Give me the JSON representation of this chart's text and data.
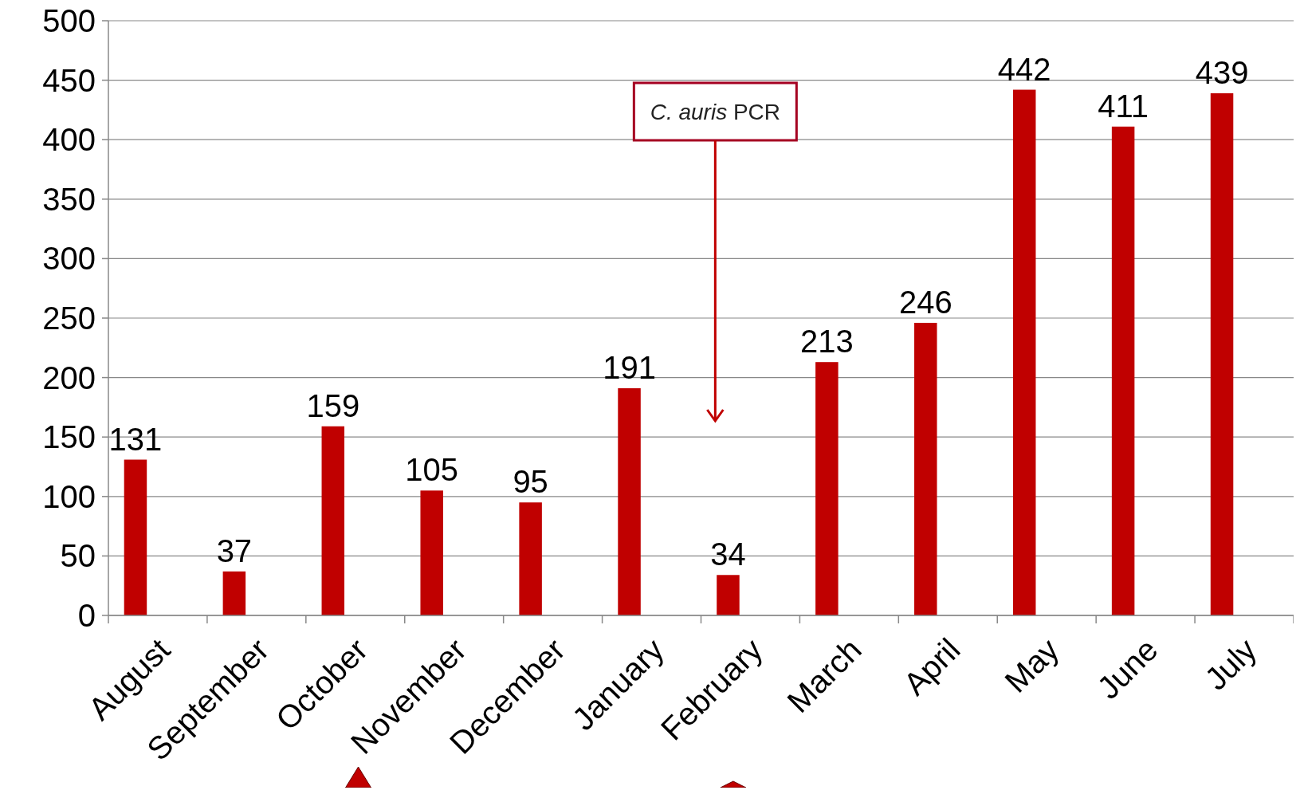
{
  "chart_data": {
    "type": "bar",
    "categories": [
      "August",
      "September",
      "October",
      "November",
      "December",
      "January",
      "February",
      "March",
      "April",
      "May",
      "June",
      "July"
    ],
    "values": [
      131,
      37,
      159,
      105,
      95,
      191,
      34,
      213,
      246,
      442,
      411,
      439
    ],
    "color": "#c00000",
    "ylim": [
      0,
      500
    ],
    "yticks": [
      0,
      50,
      100,
      150,
      200,
      250,
      300,
      350,
      400,
      450,
      500
    ],
    "grid": "y",
    "data_labels": true,
    "annotations": [
      "C. auris PCR"
    ]
  }
}
